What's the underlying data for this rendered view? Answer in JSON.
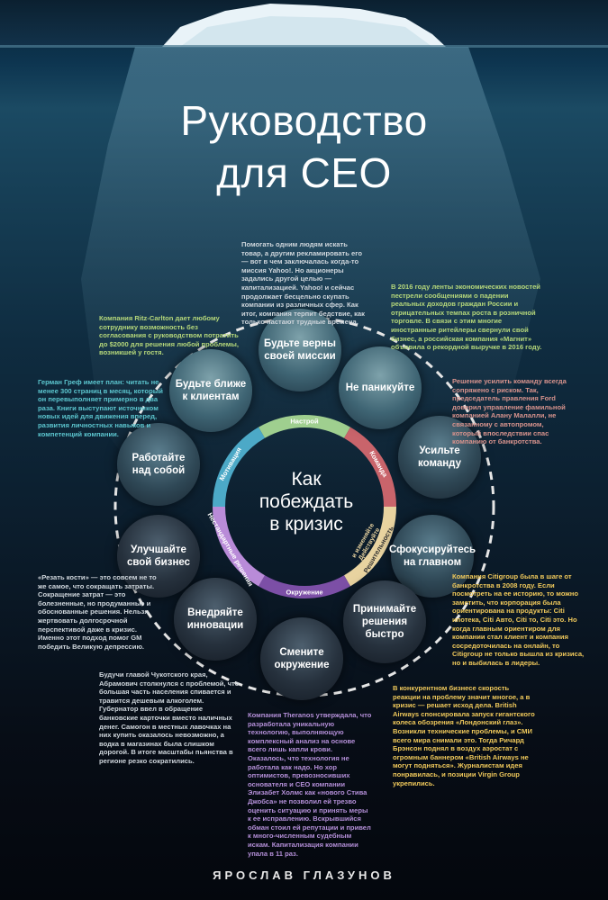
{
  "title": {
    "line1": "Руководство",
    "line2": "для CEO"
  },
  "author": "ЯРОСЛАВ ГЛАЗУНОВ",
  "center": {
    "line1": "Как",
    "line2": "побеждать",
    "line3": "в кризис"
  },
  "ring_segments": [
    {
      "label": "Настрой",
      "color": "#9fcf8f"
    },
    {
      "label": "Команда",
      "color": "#c9646b"
    },
    {
      "label": "Решительность",
      "color": "#e8d3a0"
    },
    {
      "label": "Окружение",
      "color": "#7c4fa6"
    },
    {
      "label": "Нестандартные решения",
      "color": "#b98bd8"
    },
    {
      "label": "Мотивация",
      "color": "#4ca9c7"
    }
  ],
  "ring_extra_labels": {
    "decisive_line2": "Действуйте",
    "decisive_line3": "и изменяйте"
  },
  "nodes": {
    "mission": {
      "line1": "Будьте верны",
      "line2": "своей миссии"
    },
    "no_panic": {
      "line1": "Не паникуйте"
    },
    "team": {
      "line1": "Усильте",
      "line2": "команду"
    },
    "focus": {
      "line1": "Сфокусируйтесь",
      "line2": "на главном"
    },
    "decisions": {
      "line1": "Принимайте",
      "line2": "решения",
      "line3": "быстро"
    },
    "environment": {
      "line1": "Смените",
      "line2": "окружение"
    },
    "innovate": {
      "line1": "Внедряйте",
      "line2": "инновации"
    },
    "business": {
      "line1": "Улучшайте",
      "line2": "свой бизнес"
    },
    "self": {
      "line1": "Работайте",
      "line2": "над собой"
    },
    "clients": {
      "line1": "Будьте ближе",
      "line2": "к клиентам"
    }
  },
  "notes": {
    "yahoo": "Помогать одним людям искать товар, а другим рекламировать его — вот в чем заключалась когда-то миссия Yahoo!. Но акционеры задались другой целью — капитализацией. Yahoo! и сейчас продолжает бесцельно скупать компании из различных сфер. Как итог, компания терпит бедствие, как только настают трудные времена.",
    "magnit": "В 2016 году ленты экономических новостей пестрели сообщениями о падении реальных доходов граждан России и отрицательных темпах роста в розничной торговле. В связи с этим многие иностранные ритейлеры свернули свой бизнес, а российская компания «Магнит» объявила о рекордной выручке в 2016 году.",
    "ritz": "Компания Ritz-Carlton дает любому сотруднику возможность без согласования с руководством потратить до $2000 для решения любой проблемы, возникшей у гостя.",
    "gref": "Герман Греф имеет план: читать не менее 300 страниц в месяц, который он перевыполняет примерно в два раза. Книги выступают источником новых идей для движения вперед, развития личностных навыков и компетенций компании.",
    "ford": "Решение усилить команду всегда сопряжено с риском. Так, председатель правления Ford доверил управление фамильной компанией Алану Малалли, не связанному с автопромом, который впоследствии спас компанию от банкротства.",
    "gm": "«Резать кости» — это совсем не то же самое, что сокращать затраты. Сокращение затрат — это болезненные, но продуманные и обоснованные решения. Нельзя жертвовать долгосрочной перспективой даже в кризис. Именно этот подход помог GM победить Великую депрессию.",
    "citigroup": "Компания Citigroup была в шаге от банкротства в 2008 году. Если посмотреть на ее историю, то можно заметить, что корпорация была ориентирована на продукты: Citi ипотека, Citi Авто, Citi то, Citi это. Но когда главным ориентиром для компании стал клиент и компания сосредоточилась на онлайн, то Citigroup не только вышла из кризиса, но и выбилась в лидеры.",
    "abramovich": "Будучи главой Чукотского края, Абрамович столкнулся с проблемой, что большая часть населения спивается и травится дешевым алкоголем. Губернатор ввел в обращение банковские карточки вместо наличных денег. Самогон в местных лавочках на них купить оказалось невозможно, а водка в магазинах была слишком дорогой. В итоге масштабы пьянства в регионе резко сократились.",
    "theranos": "Компания Theranos утверждала, что разработала уникальную технологию, выполняющую комплексный анализ на основе всего лишь капли крови. Оказалось, что технология не работала как надо. Но хор оптимистов, превозносивших основателя и CEO компании Элизабет Холмс как «нового Стива Джобса» не позволил ей трезво оценить ситуацию и принять меры к ее исправлению. Вскрывшийся обман стоил ей репутации и привел к много-численным судебным искам. Капитализация компании упала в 11 раз.",
    "british": "В конкурентном бизнесе скорость реакции на проблему значит многое, а в кризис — решает исход дела. British Airways спонсировала запуск гигантского колеса обозрения «Лондонский глаз». Возникли технические проблемы, и СМИ всего мира снимали это. Тогда Ричард Брэнсон поднял в воздух аэростат с огромным баннером «British Airways не могут подняться». Журналистам идея понравилась, и позиции Virgin Group укрепились."
  },
  "colors": {
    "note_white": "#cfd6dc",
    "note_lime": "#b5d77a",
    "note_cyan": "#5cc6cf",
    "note_purple": "#b48fd8",
    "note_pink": "#d8938d",
    "note_yellow": "#f0c95b"
  }
}
